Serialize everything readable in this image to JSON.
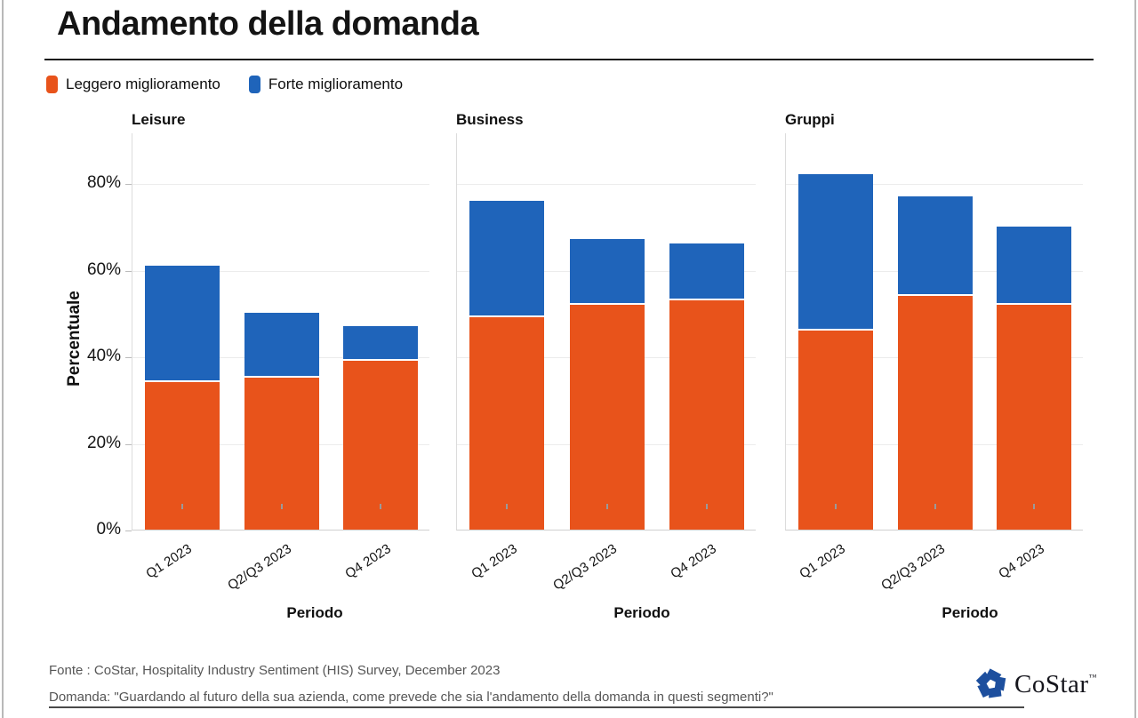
{
  "title": "Andamento della domanda",
  "legend": {
    "items": [
      {
        "label": "Leggero miglioramento",
        "color": "#e8531b"
      },
      {
        "label": "Forte miglioramento",
        "color": "#1f64ba"
      }
    ]
  },
  "chart_data": {
    "type": "bar",
    "stacked": true,
    "categories": [
      "Q1 2023",
      "Q2/Q3 2023",
      "Q4 2023"
    ],
    "xlabel": "Periodo",
    "ylabel": "Percentuale",
    "ylim": [
      0,
      92
    ],
    "yticks": [
      0,
      20,
      40,
      60,
      80
    ],
    "ytick_suffix": "%",
    "grid": true,
    "legend_position": "top-left",
    "colors": {
      "Leggero miglioramento": "#e8531b",
      "Forte miglioramento": "#1f64ba"
    },
    "panels": [
      {
        "title": "Leisure",
        "series": [
          {
            "name": "Leggero miglioramento",
            "values": [
              34,
              35,
              39
            ]
          },
          {
            "name": "Forte miglioramento",
            "values": [
              27,
              15,
              8
            ]
          }
        ],
        "totals": [
          61,
          50,
          47
        ]
      },
      {
        "title": "Business",
        "series": [
          {
            "name": "Leggero miglioramento",
            "values": [
              49,
              52,
              53
            ]
          },
          {
            "name": "Forte miglioramento",
            "values": [
              27,
              15,
              13
            ]
          }
        ],
        "totals": [
          76,
          67,
          66
        ]
      },
      {
        "title": "Gruppi",
        "series": [
          {
            "name": "Leggero miglioramento",
            "values": [
              46,
              54,
              52
            ]
          },
          {
            "name": "Forte miglioramento",
            "values": [
              36,
              23,
              18
            ]
          }
        ],
        "totals": [
          82,
          77,
          70
        ]
      }
    ]
  },
  "footer": {
    "source_label": "Fonte :",
    "source": "CoStar, Hospitality Industry Sentiment (HIS) Survey, December 2023",
    "question_label": "Domanda:",
    "question": "\"Guardando al futuro della sua azienda, come prevede che sia l'andamento della domanda in questi segmenti?\"",
    "logo": {
      "text": "CoStar",
      "tm": "™",
      "color": "#1d4f9e"
    }
  }
}
